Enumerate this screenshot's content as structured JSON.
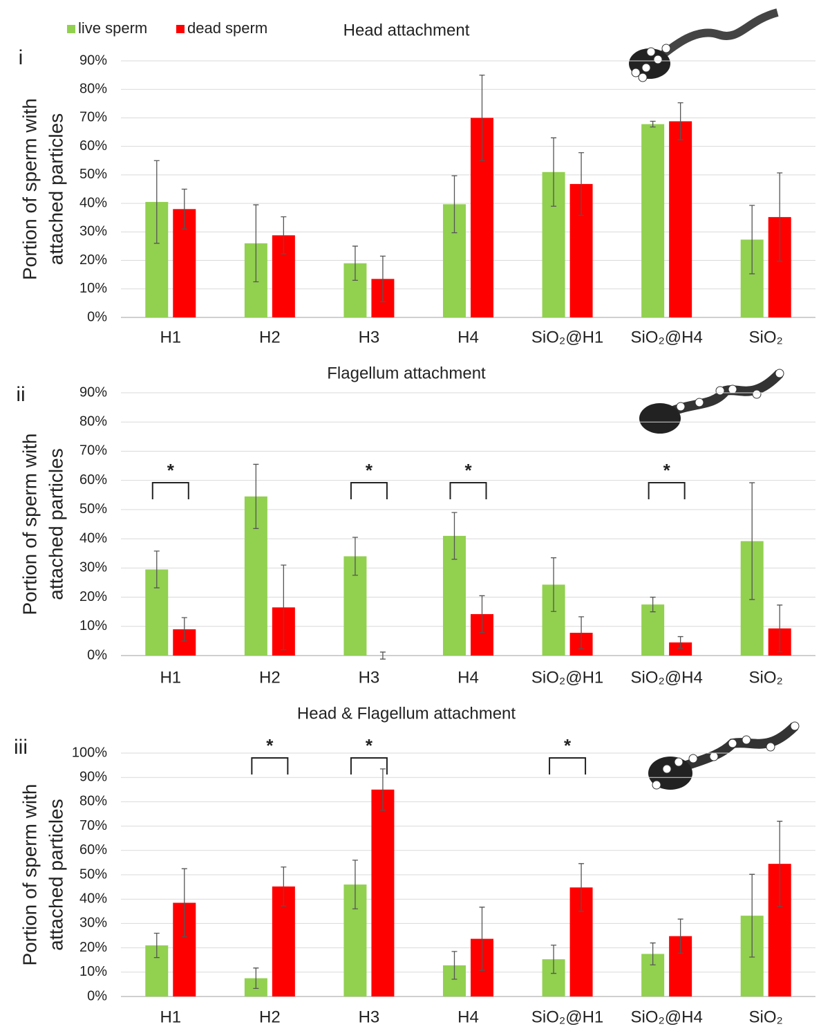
{
  "chart_data": [
    {
      "type": "bar",
      "panel": "i",
      "title": "Head attachment",
      "ylabel": [
        "Portion of sperm with",
        "attached particles"
      ],
      "categories": [
        "H1",
        "H2",
        "H3",
        "H4",
        "SiO₂@H1",
        "SiO₂@H4",
        "SiO₂"
      ],
      "series": [
        {
          "name": "live sperm",
          "color": "#92d050",
          "values": [
            40.5,
            26,
            19,
            39.7,
            51,
            67.8,
            27.3
          ],
          "errors": [
            14.5,
            13.5,
            6,
            10,
            12,
            1,
            12
          ]
        },
        {
          "name": "dead sperm",
          "color": "#ff0000",
          "values": [
            38,
            28.8,
            13.5,
            70,
            46.8,
            68.8,
            35.2
          ],
          "errors": [
            7,
            6.5,
            8,
            15,
            11,
            6.5,
            15.5
          ]
        }
      ],
      "ylim": [
        0,
        90
      ],
      "yticks": [
        {
          "value": 0,
          "label": "0%"
        },
        {
          "value": 10,
          "label": "10%"
        },
        {
          "value": 20,
          "label": "20%"
        },
        {
          "value": 30,
          "label": "30%"
        },
        {
          "value": 40,
          "label": "40%"
        },
        {
          "value": 50,
          "label": "50%"
        },
        {
          "value": 60,
          "label": "60%"
        },
        {
          "value": 70,
          "label": "70%"
        },
        {
          "value": 80,
          "label": "80%"
        },
        {
          "value": 90,
          "label": "90%"
        }
      ],
      "grid": true,
      "annotations": []
    },
    {
      "type": "bar",
      "panel": "ii",
      "title": "Flagellum attachment",
      "ylabel": [
        "Portion of sperm with",
        "attached particles"
      ],
      "categories": [
        "H1",
        "H2",
        "H3",
        "H4",
        "SiO₂@H1",
        "SiO₂@H4",
        "SiO₂"
      ],
      "series": [
        {
          "color": "#92d050",
          "values": [
            29.5,
            54.5,
            34,
            41,
            24.3,
            17.5,
            39.2
          ],
          "errors": [
            6.3,
            11,
            6.5,
            8,
            9.2,
            2.5,
            20
          ]
        },
        {
          "color": "#ff0000",
          "values": [
            9,
            16.5,
            0,
            14.2,
            7.8,
            4.5,
            9.3
          ],
          "errors": [
            4,
            14.5,
            1.2,
            6.3,
            5.5,
            2,
            8
          ]
        }
      ],
      "ylim": [
        0,
        90
      ],
      "yticks": [
        {
          "value": 0,
          "label": "0%"
        },
        {
          "value": 10,
          "label": "10%"
        },
        {
          "value": 20,
          "label": "20%"
        },
        {
          "value": 30,
          "label": "30%"
        },
        {
          "value": 40,
          "label": "40%"
        },
        {
          "value": 50,
          "label": "50%"
        },
        {
          "value": 60,
          "label": "60%"
        },
        {
          "value": 70,
          "label": "70%"
        },
        {
          "value": 80,
          "label": "80%"
        },
        {
          "value": 90,
          "label": "90%"
        }
      ],
      "grid": true,
      "annotations": [
        {
          "text": "*",
          "category": "H1"
        },
        {
          "text": "*",
          "category": "H3"
        },
        {
          "text": "*",
          "category": "H4"
        },
        {
          "text": "*",
          "category": "SiO₂@H4"
        }
      ]
    },
    {
      "type": "bar",
      "panel": "iii",
      "title": "Head & Flagellum attachment",
      "ylabel": [
        "Portion of sperm with",
        "attached particles"
      ],
      "categories": [
        "H1",
        "H2",
        "H3",
        "H4",
        "SiO₂@H1",
        "SiO₂@H4",
        "SiO₂"
      ],
      "series": [
        {
          "color": "#92d050",
          "values": [
            21,
            7.5,
            46,
            12.8,
            15.3,
            17.5,
            33.2
          ],
          "errors": [
            5,
            4.2,
            10,
            5.7,
            5.8,
            4.5,
            17
          ]
        },
        {
          "color": "#ff0000",
          "values": [
            38.5,
            45.2,
            85,
            23.7,
            44.8,
            24.8,
            54.5
          ],
          "errors": [
            14,
            8,
            8.5,
            13,
            9.8,
            7,
            17.5
          ]
        }
      ],
      "ylim": [
        0,
        100
      ],
      "yticks": [
        {
          "value": 0,
          "label": "0%"
        },
        {
          "value": 10,
          "label": "10%"
        },
        {
          "value": 20,
          "label": "20%"
        },
        {
          "value": 30,
          "label": "30%"
        },
        {
          "value": 40,
          "label": "40%"
        },
        {
          "value": 50,
          "label": "50%"
        },
        {
          "value": 60,
          "label": "60%"
        },
        {
          "value": 70,
          "label": "70%"
        },
        {
          "value": 80,
          "label": "80%"
        },
        {
          "value": 90,
          "label": "90%"
        },
        {
          "value": 100,
          "label": "100%"
        }
      ],
      "grid": true,
      "annotations": [
        {
          "text": "*",
          "category": "H2"
        },
        {
          "text": "*",
          "category": "H3"
        },
        {
          "text": "*",
          "category": "SiO₂@H1"
        }
      ]
    }
  ]
}
